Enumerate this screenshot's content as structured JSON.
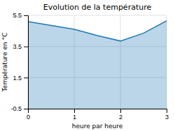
{
  "chart_data": {
    "type": "area",
    "title": "Evolution de la température",
    "xlabel": "heure par heure",
    "ylabel": "Température en °C",
    "x": [
      0,
      0.5,
      1,
      1.5,
      2,
      2.5,
      3
    ],
    "values": [
      5.1,
      4.85,
      4.6,
      4.2,
      3.85,
      4.35,
      5.15
    ],
    "xlim": [
      0,
      3
    ],
    "ylim": [
      -0.5,
      5.5
    ],
    "xticks": [
      0,
      1,
      2,
      3
    ],
    "yticks": [
      -0.5,
      1.5,
      3.5,
      5.5
    ],
    "grid": true
  }
}
